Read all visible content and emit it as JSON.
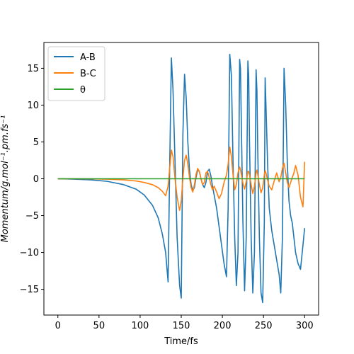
{
  "chart_data": {
    "type": "line",
    "title": "",
    "xlabel": "Time/fs",
    "ylabel": "Momentum/g.mol⁻¹.pm.fs⁻¹",
    "xlim": [
      -17,
      317
    ],
    "ylim": [
      -18.5,
      18.5
    ],
    "xticks": [
      0,
      50,
      100,
      150,
      200,
      250,
      300
    ],
    "xtick_labels": [
      "0",
      "50",
      "100",
      "150",
      "200",
      "250",
      "300"
    ],
    "yticks": [
      -15,
      -10,
      -5,
      0,
      5,
      10,
      15
    ],
    "ytick_labels": [
      "−15",
      "−10",
      "−5",
      "0",
      "5",
      "10",
      "15"
    ],
    "grid": false,
    "legend": "top-left",
    "series": [
      {
        "name": "A-B",
        "color": "#1f77b4",
        "x": [
          0,
          20,
          40,
          60,
          80,
          95,
          105,
          115,
          122,
          127,
          131,
          134,
          136,
          138,
          140,
          142,
          145,
          148,
          150,
          152,
          154,
          156,
          158,
          160,
          162,
          164,
          166,
          168,
          170,
          172,
          174,
          176,
          178,
          180,
          182,
          184,
          186,
          188,
          190,
          193,
          196,
          199,
          202,
          205,
          207,
          209,
          211,
          213,
          215,
          217,
          219,
          221,
          222,
          223,
          225,
          227,
          229,
          231,
          232,
          233,
          235,
          237,
          239,
          241,
          242,
          243,
          245,
          247,
          249,
          251,
          252,
          253,
          255,
          257,
          260,
          263,
          266,
          269,
          271,
          273,
          275,
          277,
          279,
          281,
          283,
          285,
          287,
          289,
          292,
          295,
          298,
          300
        ],
        "y": [
          0,
          -0.05,
          -0.15,
          -0.35,
          -0.8,
          -1.4,
          -2.2,
          -3.6,
          -5.3,
          -7.5,
          -10.0,
          -14.0,
          2.0,
          16.4,
          12.0,
          4.0,
          -8.0,
          -14.5,
          -16.2,
          6.0,
          14.2,
          11.0,
          5.0,
          1.2,
          -0.8,
          -1.6,
          -1.2,
          0.2,
          1.2,
          1.0,
          0.0,
          -0.8,
          -1.2,
          -0.5,
          1.0,
          1.3,
          0.4,
          -1.0,
          -2.2,
          -4.0,
          -6.5,
          -9.0,
          -11.5,
          -13.3,
          -4.0,
          16.9,
          14.0,
          2.0,
          -8.0,
          -14.5,
          -10.0,
          16.2,
          15.0,
          8.0,
          -6.0,
          -15.2,
          -8.0,
          16.0,
          14.0,
          5.0,
          -8.0,
          -15.5,
          -10.0,
          14.8,
          12.0,
          4.0,
          -8.0,
          -15.5,
          -16.8,
          -6.0,
          13.7,
          10.0,
          2.0,
          -4.0,
          -7.0,
          -9.0,
          -11.0,
          -13.0,
          -15.5,
          -8.0,
          15.0,
          10.0,
          2.0,
          -3.0,
          -5.0,
          -6.0,
          -8.0,
          -10.0,
          -11.5,
          -12.3,
          -9.0,
          -6.7
        ]
      },
      {
        "name": "B-C",
        "color": "#ff7f0e",
        "x": [
          0,
          20,
          40,
          60,
          80,
          95,
          105,
          115,
          122,
          127,
          131,
          134,
          136,
          138,
          140,
          142,
          145,
          148,
          150,
          152,
          154,
          156,
          158,
          160,
          162,
          164,
          166,
          168,
          170,
          172,
          174,
          176,
          178,
          180,
          182,
          184,
          186,
          188,
          190,
          193,
          196,
          199,
          202,
          205,
          207,
          209,
          211,
          213,
          215,
          217,
          219,
          221,
          222,
          223,
          225,
          227,
          229,
          231,
          232,
          233,
          235,
          237,
          239,
          241,
          242,
          243,
          245,
          247,
          249,
          251,
          252,
          253,
          255,
          257,
          260,
          263,
          266,
          269,
          271,
          273,
          275,
          277,
          279,
          281,
          283,
          285,
          287,
          289,
          292,
          295,
          298,
          300
        ],
        "y": [
          0,
          0,
          -0.02,
          -0.05,
          -0.15,
          -0.3,
          -0.5,
          -0.8,
          -1.2,
          -1.7,
          -2.3,
          -1.0,
          1.5,
          3.9,
          3.0,
          0.5,
          -2.5,
          -4.3,
          -3.0,
          0.0,
          2.5,
          3.2,
          2.0,
          0.2,
          -1.2,
          -1.8,
          -0.8,
          0.6,
          1.4,
          1.0,
          0.0,
          -0.8,
          -0.5,
          0.8,
          1.0,
          0.2,
          -0.8,
          -1.5,
          -1.0,
          -1.8,
          -2.7,
          -2.0,
          -0.5,
          0.5,
          2.0,
          4.3,
          3.0,
          0.5,
          -1.5,
          -0.8,
          0.8,
          1.6,
          1.2,
          0.6,
          -0.6,
          -1.4,
          -0.4,
          1.0,
          1.0,
          0.5,
          -0.8,
          -2.0,
          -1.0,
          0.8,
          1.2,
          0.6,
          -0.8,
          -1.9,
          -1.2,
          0.5,
          1.1,
          0.8,
          -0.2,
          -1.0,
          -1.5,
          -0.3,
          0.8,
          -0.4,
          0.2,
          1.4,
          2.1,
          0.8,
          -0.5,
          -1.2,
          -0.5,
          0.2,
          0.8,
          1.8,
          0.5,
          -2.5,
          -3.8,
          2.3
        ]
      },
      {
        "name": "θ",
        "color": "#2ca02c",
        "x": [
          0,
          300
        ],
        "y": [
          0,
          0
        ]
      }
    ]
  }
}
